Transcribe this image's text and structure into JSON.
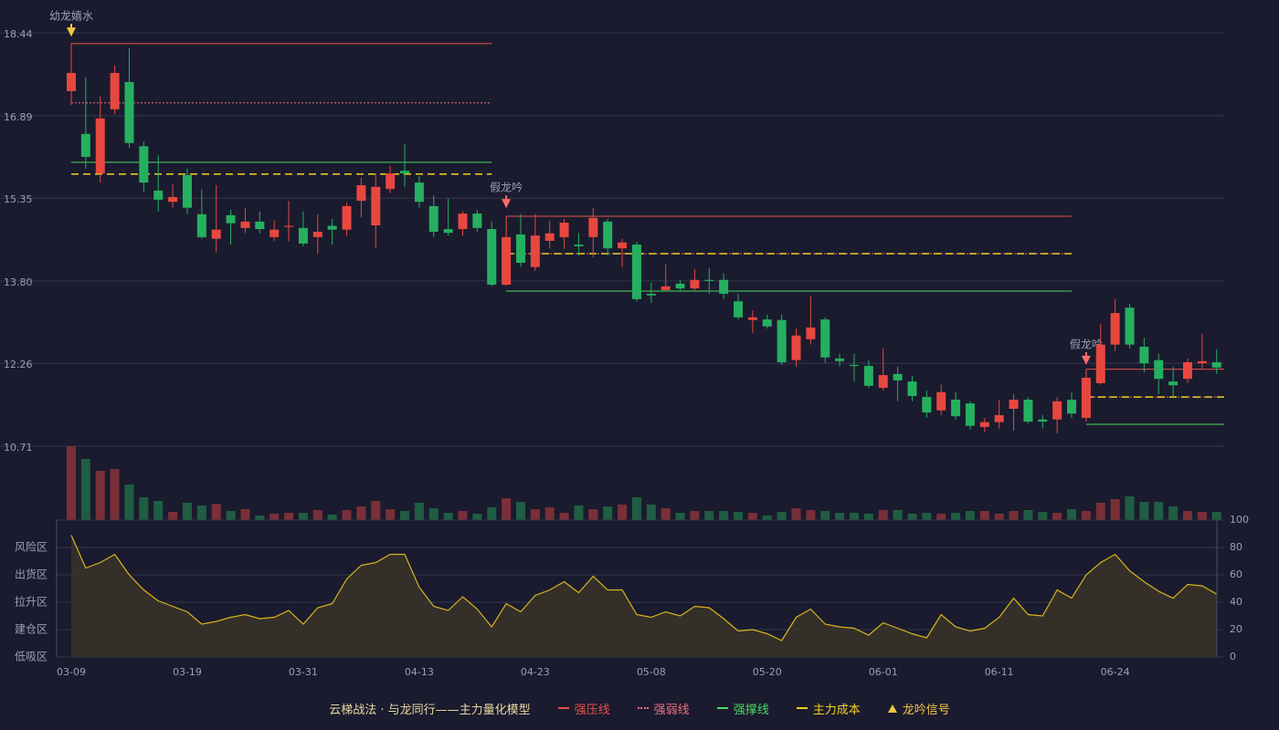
{
  "chart_data": [
    {
      "type": "candlestick",
      "open": [
        17.35,
        16.55,
        15.81,
        17.01,
        17.52,
        16.32,
        15.49,
        15.28,
        15.78,
        15.05,
        14.59,
        15.03,
        14.79,
        14.91,
        14.62,
        14.81,
        14.79,
        14.62,
        14.83,
        14.76,
        15.3,
        14.84,
        15.52,
        15.86,
        15.64,
        15.2,
        14.77,
        14.77,
        15.06,
        14.77,
        13.73,
        14.67,
        14.06,
        14.55,
        14.62,
        14.48,
        14.62,
        14.91,
        14.41,
        14.48,
        13.56,
        13.63,
        13.75,
        13.66,
        13.82,
        13.82,
        13.42,
        13.07,
        13.08,
        13.07,
        12.32,
        12.71,
        13.08,
        12.35,
        12.23,
        12.21,
        11.8,
        12.06,
        11.92,
        11.63,
        11.38,
        11.58,
        11.51,
        11.07,
        11.16,
        11.41,
        11.58,
        11.21,
        11.21,
        11.58,
        11.24,
        11.89,
        12.61,
        13.3,
        12.57,
        12.32,
        11.92,
        11.97,
        12.26,
        12.28
      ],
      "close": [
        17.69,
        16.12,
        16.84,
        17.69,
        16.38,
        15.64,
        15.32,
        15.37,
        15.17,
        14.62,
        14.76,
        14.88,
        14.91,
        14.77,
        14.76,
        14.83,
        14.5,
        14.72,
        14.76,
        15.2,
        15.59,
        15.56,
        15.81,
        15.81,
        15.28,
        14.72,
        14.7,
        15.06,
        14.79,
        13.73,
        14.62,
        14.14,
        14.65,
        14.69,
        14.89,
        14.45,
        14.98,
        14.41,
        14.52,
        13.46,
        13.53,
        13.7,
        13.66,
        13.82,
        13.8,
        13.56,
        13.12,
        13.12,
        12.95,
        12.28,
        12.78,
        12.93,
        12.37,
        12.3,
        12.21,
        11.84,
        12.04,
        11.94,
        11.65,
        11.34,
        11.72,
        11.27,
        11.09,
        11.16,
        11.29,
        11.58,
        11.17,
        11.17,
        11.55,
        11.32,
        11.99,
        12.61,
        13.2,
        12.61,
        12.26,
        11.97,
        11.85,
        12.28,
        12.3,
        12.18
      ],
      "high": [
        18.2,
        17.61,
        17.26,
        17.83,
        18.15,
        16.41,
        16.15,
        15.61,
        15.9,
        15.51,
        15.59,
        15.13,
        15.17,
        15.1,
        14.93,
        15.3,
        15.1,
        15.05,
        14.96,
        15.27,
        15.73,
        15.81,
        15.95,
        16.36,
        15.76,
        15.4,
        15.34,
        15.1,
        15.13,
        14.91,
        14.99,
        15.05,
        15.05,
        14.93,
        14.96,
        14.7,
        15.17,
        14.96,
        14.59,
        14.53,
        13.77,
        14.11,
        13.82,
        14.02,
        14.04,
        13.94,
        13.56,
        13.25,
        13.17,
        13.17,
        12.91,
        13.51,
        13.12,
        12.44,
        12.44,
        12.32,
        12.54,
        12.2,
        12.03,
        11.75,
        11.86,
        11.72,
        11.55,
        11.24,
        11.58,
        11.68,
        11.63,
        11.29,
        11.63,
        11.72,
        12.06,
        13.0,
        13.46,
        13.37,
        12.74,
        12.44,
        12.2,
        12.35,
        12.81,
        12.52
      ],
      "low": [
        17.09,
        15.9,
        15.64,
        16.92,
        16.29,
        15.47,
        15.1,
        15.17,
        15.05,
        14.59,
        14.33,
        14.48,
        14.7,
        14.69,
        14.55,
        14.54,
        14.45,
        14.31,
        14.48,
        14.65,
        14.99,
        14.41,
        15.44,
        15.56,
        15.17,
        14.62,
        14.65,
        14.65,
        14.72,
        13.7,
        13.71,
        14.06,
        13.99,
        14.41,
        14.4,
        14.28,
        14.24,
        14.28,
        14.06,
        13.42,
        13.39,
        13.6,
        13.6,
        13.63,
        13.56,
        13.46,
        13.08,
        12.83,
        12.91,
        12.23,
        12.2,
        12.61,
        12.26,
        12.2,
        11.92,
        11.8,
        11.75,
        11.55,
        11.55,
        11.24,
        11.29,
        11.21,
        11.02,
        10.97,
        11.04,
        11.0,
        11.14,
        11.04,
        10.95,
        11.24,
        11.17,
        11.86,
        12.49,
        12.54,
        12.09,
        11.68,
        11.63,
        11.89,
        12.15,
        12.06
      ],
      "up_color": "#e8473f",
      "down_color": "#25b060",
      "ylim": [
        10.71,
        18.44
      ],
      "yticks": [
        18.44,
        16.89,
        15.35,
        {
          "value": 13.8,
          "label": "13.80"
        },
        12.26,
        10.71
      ],
      "grid": true,
      "segments": [
        [
          0,
          29
        ],
        [
          30,
          69
        ],
        [
          70,
          79
        ]
      ],
      "levels": [
        {
          "name": "强压线",
          "color": "#e8504a",
          "dash": "solid",
          "values": [
            18.24,
            15.01,
            12.15
          ]
        },
        {
          "name": "强弱线",
          "color": "#f07080",
          "dash": "dotted",
          "values": [
            17.13,
            14.31,
            11.63
          ]
        },
        {
          "name": "强撑线",
          "color": "#4cd964",
          "dash": "solid",
          "values": [
            16.02,
            13.61,
            11.12
          ]
        },
        {
          "name": "主力成本",
          "color": "#f5d020",
          "dash": "dashed",
          "values": [
            15.8,
            14.31,
            11.63
          ]
        }
      ],
      "signals": [
        {
          "label": "幼龙嬉水",
          "color": "#f2c744"
        },
        null,
        null,
        null,
        null,
        null,
        null,
        null,
        null,
        null,
        null,
        null,
        null,
        null,
        null,
        null,
        null,
        null,
        null,
        null,
        null,
        null,
        null,
        null,
        null,
        null,
        null,
        null,
        null,
        null,
        {
          "label": "假龙吟",
          "color": "#ff6b6b"
        },
        null,
        null,
        null,
        null,
        null,
        null,
        null,
        null,
        null,
        null,
        null,
        null,
        null,
        null,
        null,
        null,
        null,
        null,
        null,
        null,
        null,
        null,
        null,
        null,
        null,
        null,
        null,
        null,
        null,
        null,
        null,
        null,
        null,
        null,
        null,
        null,
        null,
        null,
        null,
        {
          "label": "假龙吟",
          "color": "#ff6b6b"
        },
        null,
        null,
        null,
        null,
        null,
        null,
        null,
        null,
        null
      ]
    },
    {
      "type": "bar",
      "values": [
        81,
        67,
        54,
        56,
        39,
        25,
        21,
        9,
        19,
        16,
        18,
        10,
        12,
        5,
        7,
        8,
        8,
        11,
        6,
        11,
        15,
        21,
        12,
        10,
        19,
        13,
        8,
        10,
        7,
        14,
        24,
        20,
        12,
        14,
        8,
        16,
        12,
        15,
        17,
        25,
        17,
        13,
        8,
        10,
        10,
        10,
        9,
        8,
        5,
        9,
        13,
        11,
        10,
        8,
        8,
        7,
        11,
        11,
        7,
        8,
        7,
        8,
        10,
        10,
        7,
        10,
        11,
        9,
        8,
        12,
        10,
        19,
        23,
        26,
        20,
        20,
        15,
        10,
        9,
        9
      ],
      "ylim": [
        0,
        81
      ],
      "up_color": "#7a2f38",
      "down_color": "#1f5e42"
    },
    {
      "type": "line",
      "categories": [
        "03-09",
        null,
        null,
        null,
        null,
        null,
        null,
        null,
        "03-19",
        null,
        null,
        null,
        null,
        null,
        null,
        null,
        "03-31",
        null,
        null,
        null,
        null,
        null,
        null,
        null,
        "04-13",
        null,
        null,
        null,
        null,
        null,
        null,
        null,
        "04-23",
        null,
        null,
        null,
        null,
        null,
        null,
        null,
        "05-08",
        null,
        null,
        null,
        null,
        null,
        null,
        null,
        "05-20",
        null,
        null,
        null,
        null,
        null,
        null,
        null,
        "06-01",
        null,
        null,
        null,
        null,
        null,
        null,
        null,
        "06-11",
        null,
        null,
        null,
        null,
        null,
        null,
        null,
        "06-24",
        null,
        null,
        null,
        null,
        null,
        null,
        null
      ],
      "values": [
        89,
        65,
        69,
        75,
        60,
        49,
        41,
        37,
        33,
        24,
        26,
        29,
        31,
        28,
        29,
        34,
        24,
        36,
        39,
        57,
        67,
        69,
        75,
        75,
        51,
        37,
        34,
        44,
        35,
        22,
        39,
        33,
        45,
        49,
        55,
        47,
        59,
        49,
        49,
        31,
        29,
        33,
        30,
        37,
        36,
        28,
        19,
        20,
        17,
        12,
        29,
        35,
        24,
        22,
        21,
        16,
        25,
        21,
        17,
        14,
        31,
        22,
        19,
        21,
        29,
        43,
        31,
        30,
        49,
        43,
        60,
        69,
        75,
        63,
        55,
        48,
        43,
        53,
        52,
        46
      ],
      "color": "#d8b420",
      "fill": "#3a3428",
      "ylim": [
        0,
        100
      ],
      "yticks": [
        0,
        20,
        40,
        60,
        80,
        100
      ],
      "tick_colors": [
        "#ff4d4d",
        "#ff9a3c",
        "#5aa0ff",
        "#e040e0",
        "#ff9a3c",
        "#4cd964"
      ],
      "zones": [
        {
          "label": "风险区",
          "value": 80,
          "color": "#ff9a3c"
        },
        {
          "label": "出货区",
          "value": 60,
          "color": "#e040e0"
        },
        {
          "label": "拉升区",
          "value": 40,
          "color": "#5aa0ff"
        },
        {
          "label": "建仓区",
          "value": 20,
          "color": "#ff6a3c"
        },
        {
          "label": "低吸区",
          "value": 0,
          "color": "#ff4d4d"
        }
      ]
    }
  ],
  "legend": {
    "title": "云梯战法 · 与龙同行——主力量化模型",
    "title_color": "#e8d9a0",
    "items": [
      {
        "name": "强压线",
        "color": "#e8504a",
        "symbol": "solid"
      },
      {
        "name": "强弱线",
        "color": "#f07080",
        "symbol": "dotted"
      },
      {
        "name": "强撑线",
        "color": "#4cd964",
        "symbol": "solid"
      },
      {
        "name": "主力成本",
        "color": "#f5d020",
        "symbol": "dashed"
      },
      {
        "name": "龙吟信号",
        "color": "#f5c542",
        "symbol": "triangle"
      }
    ]
  }
}
